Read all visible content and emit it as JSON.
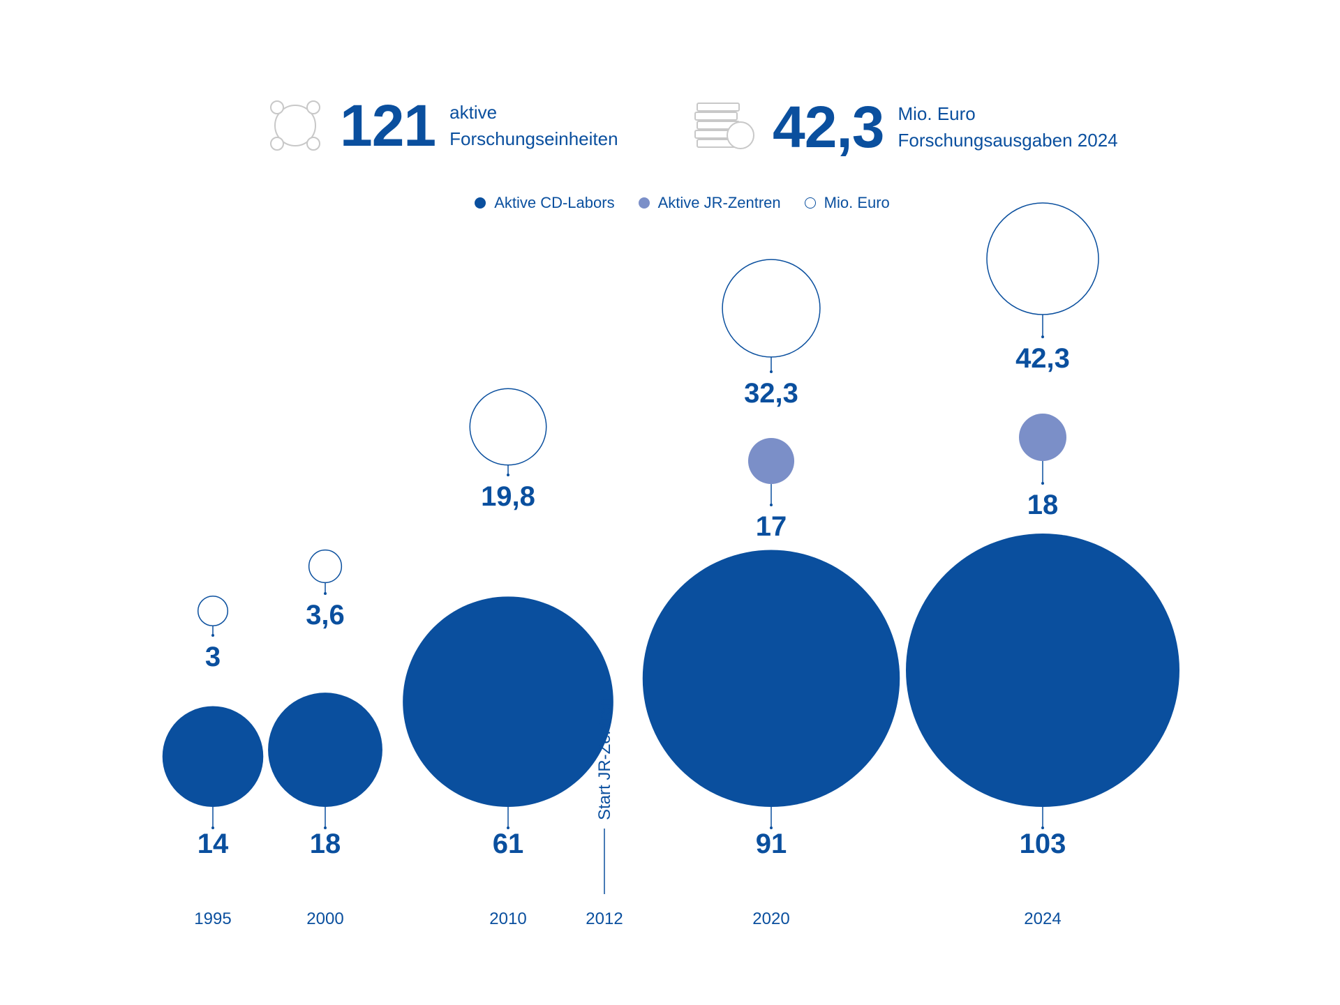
{
  "header": {
    "units_value": "121",
    "units_label_line1": "aktive",
    "units_label_line2": "Forschungseinheiten",
    "euro_value": "42,3",
    "euro_label_line1": "Mio. Euro",
    "euro_label_line2": "Forschungsausgaben 2024",
    "units_icon": "network-circle-icon",
    "euro_icon": "coin-stack-icon"
  },
  "legend": {
    "cd_labs": "Aktive CD-Labors",
    "jr_centers": "Aktive JR-Zentren",
    "mio_euro": "Mio. Euro"
  },
  "chart_data": {
    "type": "bubble",
    "categories": [
      "1995",
      "2000",
      "2010",
      "2012",
      "2020",
      "2024"
    ],
    "series": [
      {
        "name": "Aktive CD-Labors",
        "values": [
          14,
          18,
          61,
          null,
          91,
          103
        ],
        "labels": [
          "14",
          "18",
          "61",
          "",
          "91",
          "103"
        ],
        "color": "#0a4f9e",
        "style": "filled"
      },
      {
        "name": "Aktive JR-Zentren",
        "values": [
          null,
          null,
          null,
          null,
          17,
          18
        ],
        "labels": [
          "",
          "",
          "",
          "",
          "17",
          "18"
        ],
        "color": "#7b8fc8",
        "style": "filled"
      },
      {
        "name": "Mio. Euro",
        "values": [
          3,
          3.6,
          19.8,
          null,
          32.3,
          42.3
        ],
        "labels": [
          "3",
          "3,6",
          "19,8",
          "",
          "32,3",
          "42,3"
        ],
        "color": "#0a4f9e",
        "style": "outline"
      }
    ],
    "annotations": [
      {
        "category": "2012",
        "text": "Start JR-Zentren"
      }
    ],
    "colors": {
      "primary": "#0a4f9e",
      "secondary": "#7b8fc8",
      "icon_gray": "#c8c8c8"
    }
  }
}
